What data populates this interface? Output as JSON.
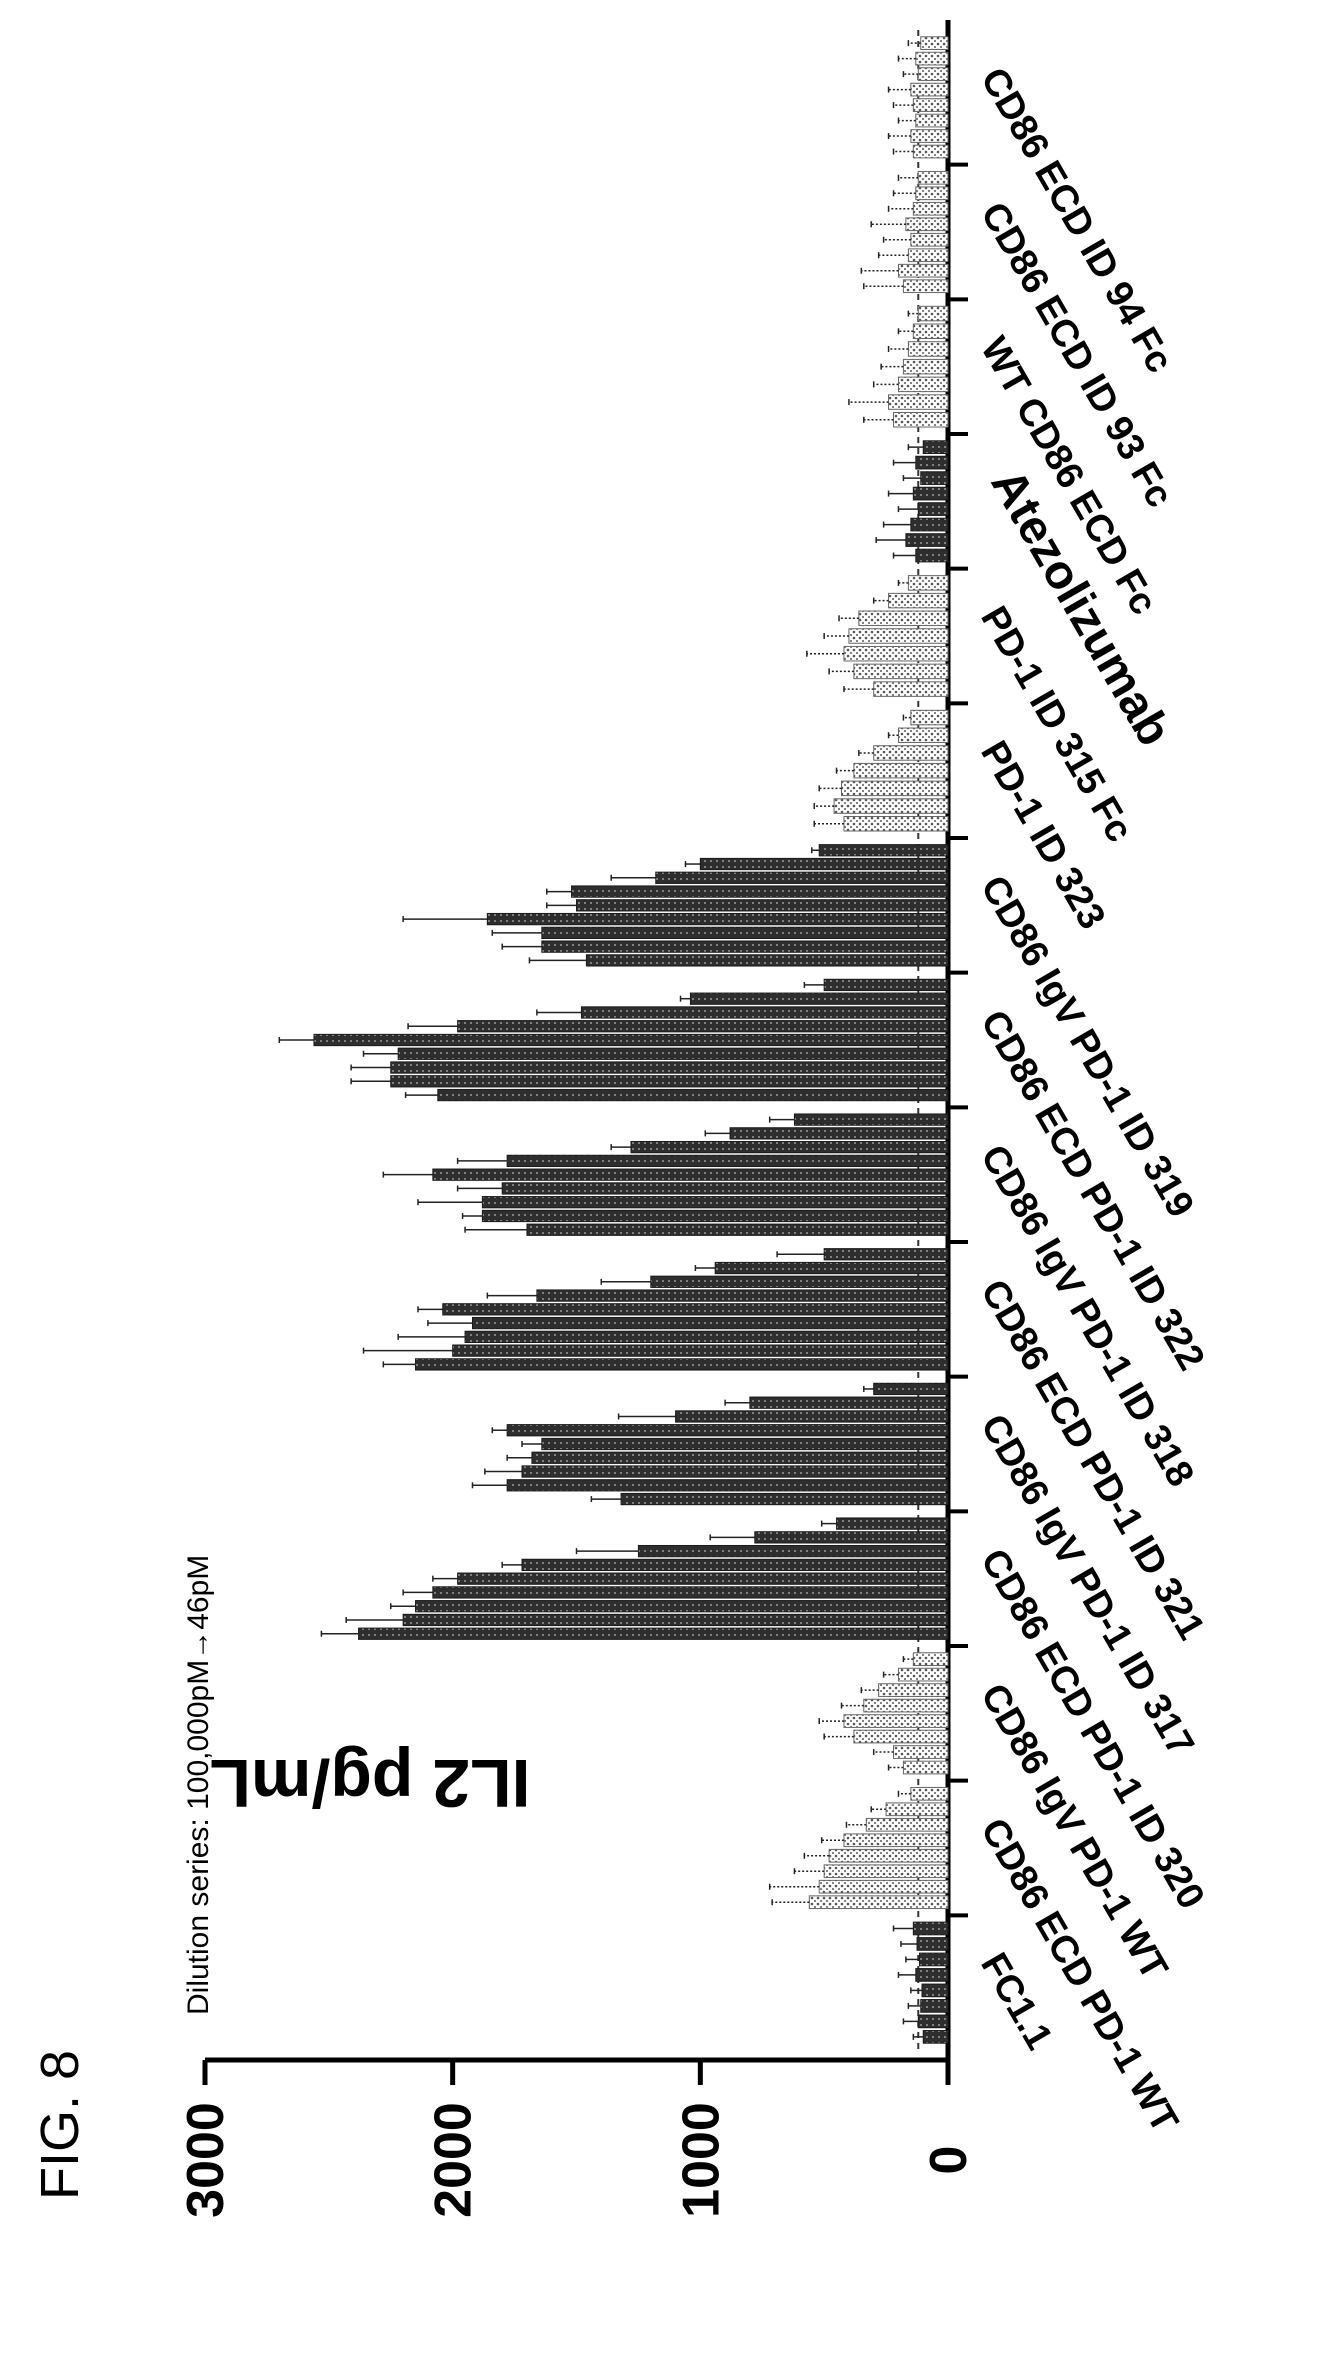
{
  "figure_label": "FIG. 8",
  "chart_data": {
    "type": "bar",
    "title": "",
    "ylabel": "IL2 pg/mL",
    "xlabel": "",
    "annotation": "Dilution series: 100,000pM→46pM",
    "ylim": [
      0,
      3000
    ],
    "yticks": [
      0,
      1000,
      2000,
      3000
    ],
    "reference_line": 120,
    "orientation": "rotated-90",
    "grid": false,
    "groups": [
      {
        "label": "FC1.1",
        "emphasis": false,
        "fill": "dark",
        "values": [
          100,
          120,
          110,
          105,
          130,
          115,
          125,
          140
        ],
        "errors": [
          40,
          60,
          50,
          45,
          70,
          55,
          65,
          80
        ]
      },
      {
        "label": "CD86 ECD PD-1 WT",
        "emphasis": false,
        "fill": "light",
        "values": [
          560,
          520,
          500,
          480,
          420,
          330,
          250,
          150
        ],
        "errors": [
          150,
          200,
          120,
          100,
          90,
          80,
          60,
          50
        ]
      },
      {
        "label": "CD86 IgV  PD-1 WT",
        "emphasis": false,
        "fill": "light",
        "values": [
          180,
          220,
          380,
          420,
          340,
          280,
          200,
          140
        ],
        "errors": [
          60,
          80,
          120,
          100,
          90,
          70,
          60,
          40
        ]
      },
      {
        "label": "CD86 ECD PD-1 ID 320",
        "emphasis": false,
        "fill": "dark",
        "values": [
          2380,
          2200,
          2150,
          2080,
          1980,
          1720,
          1250,
          780,
          450
        ],
        "errors": [
          150,
          230,
          100,
          120,
          100,
          80,
          250,
          180,
          60
        ]
      },
      {
        "label": "CD86 IgV PD-1 ID 317",
        "emphasis": false,
        "fill": "dark",
        "values": [
          1320,
          1780,
          1720,
          1680,
          1640,
          1780,
          1100,
          800,
          300
        ],
        "errors": [
          120,
          140,
          150,
          100,
          80,
          60,
          230,
          100,
          40
        ]
      },
      {
        "label": "CD86 ECD PD-1 ID 321",
        "emphasis": false,
        "fill": "dark",
        "values": [
          2150,
          2000,
          1950,
          1920,
          2040,
          1660,
          1200,
          940,
          500
        ],
        "errors": [
          130,
          360,
          270,
          180,
          100,
          200,
          200,
          80,
          190
        ]
      },
      {
        "label": "CD86 IgV PD-1 ID 318",
        "emphasis": false,
        "fill": "dark",
        "values": [
          1700,
          1880,
          1880,
          1800,
          2080,
          1780,
          1280,
          880,
          620
        ],
        "errors": [
          250,
          80,
          260,
          180,
          200,
          200,
          80,
          100,
          100
        ]
      },
      {
        "label": "CD86 ECD PD-1 ID 322",
        "emphasis": false,
        "fill": "dark",
        "values": [
          2060,
          2250,
          2250,
          2220,
          2560,
          1980,
          1480,
          1040,
          500
        ],
        "errors": [
          130,
          160,
          160,
          140,
          140,
          200,
          180,
          40,
          80
        ]
      },
      {
        "label": "CD86 IgV PD-1 ID 319",
        "emphasis": false,
        "fill": "dark",
        "values": [
          1460,
          1640,
          1640,
          1860,
          1500,
          1520,
          1180,
          1000,
          520
        ],
        "errors": [
          230,
          160,
          200,
          340,
          120,
          100,
          180,
          60,
          30
        ]
      },
      {
        "label": "PD-1 ID 323",
        "emphasis": false,
        "fill": "light",
        "values": [
          420,
          460,
          430,
          380,
          300,
          200,
          150
        ],
        "errors": [
          120,
          80,
          90,
          70,
          60,
          40,
          30
        ]
      },
      {
        "label": "PD-1 ID 315 Fc",
        "emphasis": false,
        "fill": "light",
        "values": [
          300,
          380,
          420,
          400,
          360,
          240,
          160
        ],
        "errors": [
          120,
          100,
          150,
          100,
          80,
          60,
          40
        ]
      },
      {
        "label": "Atezolizumab",
        "emphasis": true,
        "fill": "dark",
        "values": [
          130,
          170,
          150,
          120,
          140,
          110,
          130,
          100
        ],
        "errors": [
          90,
          120,
          110,
          80,
          100,
          70,
          90,
          60
        ]
      },
      {
        "label": "WT CD86 ECD Fc",
        "emphasis": false,
        "fill": "light",
        "values": [
          220,
          240,
          200,
          180,
          160,
          140,
          120
        ],
        "errors": [
          120,
          160,
          100,
          90,
          80,
          60,
          40
        ]
      },
      {
        "label": "CD86 ECD  ID 93 Fc",
        "emphasis": false,
        "fill": "light",
        "values": [
          180,
          200,
          160,
          150,
          170,
          140,
          130,
          120
        ],
        "errors": [
          160,
          150,
          120,
          110,
          140,
          100,
          90,
          80
        ]
      },
      {
        "label": "CD86 ECD ID 94 Fc",
        "emphasis": false,
        "fill": "light",
        "values": [
          140,
          150,
          130,
          140,
          150,
          120,
          130,
          110
        ],
        "errors": [
          80,
          90,
          70,
          80,
          90,
          60,
          70,
          50
        ]
      }
    ],
    "group_colors": {
      "dark": "#3a3a3a",
      "light": "#b8b8b8",
      "axis": "#000000"
    }
  }
}
